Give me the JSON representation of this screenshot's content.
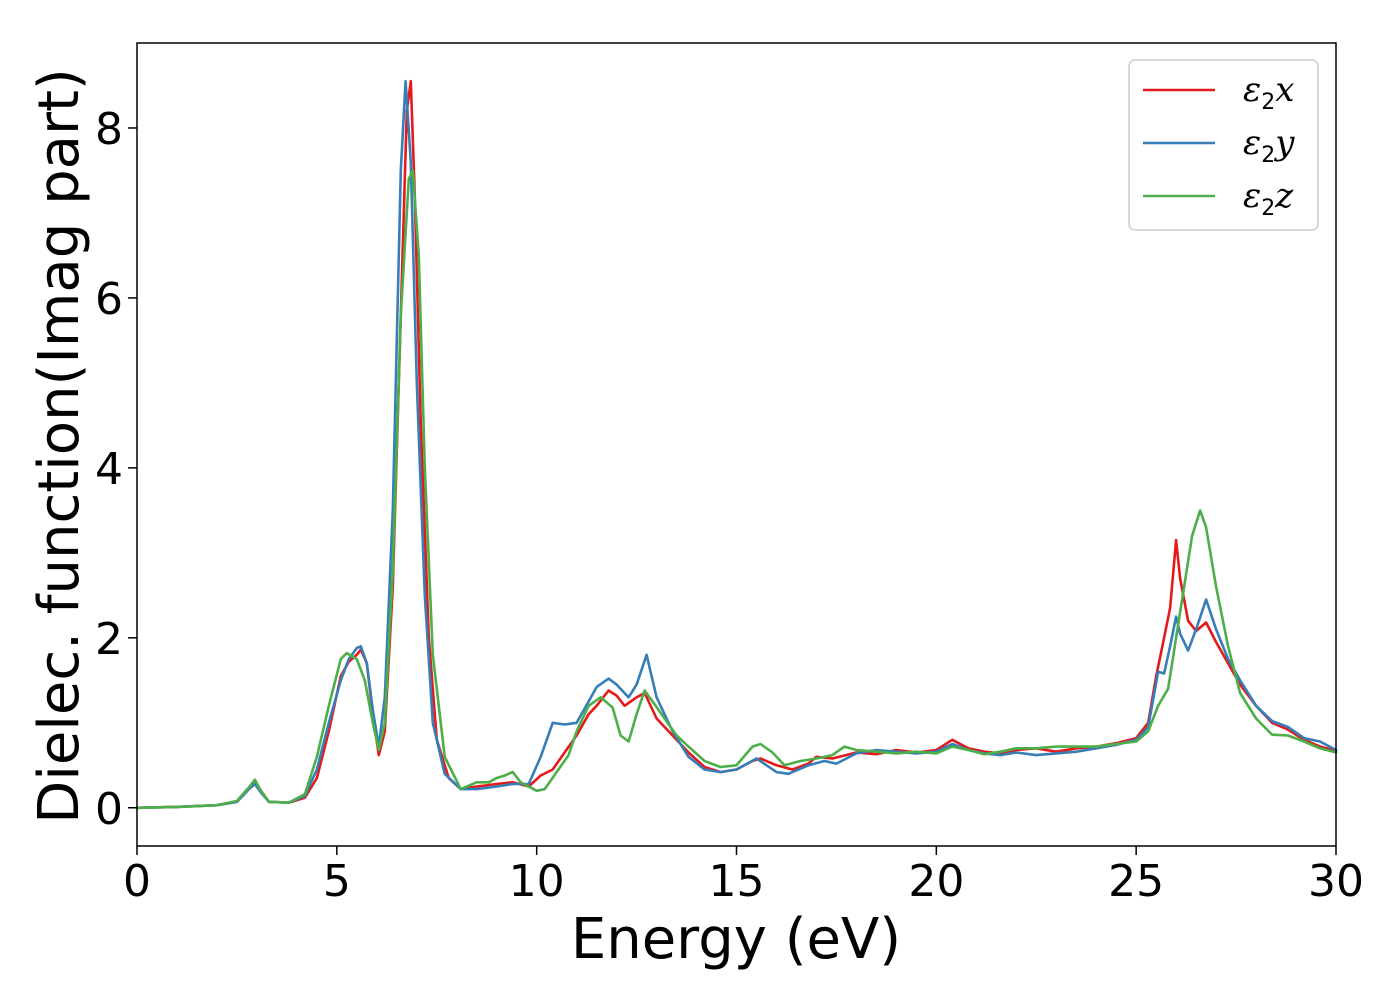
{
  "chart_data": {
    "type": "line",
    "xlabel": "Energy (eV)",
    "ylabel": "Dielec. function(Imag part)",
    "xlim": [
      0,
      30
    ],
    "ylim": [
      -0.45,
      9.0
    ],
    "xticks": [
      0,
      5,
      10,
      15,
      20,
      25,
      30
    ],
    "yticks": [
      0,
      2,
      4,
      6,
      8
    ],
    "grid": false,
    "legend_position": "top-right",
    "series": [
      {
        "name": "ε2x",
        "legend_base": "ε",
        "legend_sub": "2",
        "legend_suffix": "x",
        "color": "#e41a1c",
        "points": [
          [
            0,
            0
          ],
          [
            1,
            0.01
          ],
          [
            2,
            0.03
          ],
          [
            2.5,
            0.07
          ],
          [
            2.8,
            0.22
          ],
          [
            2.95,
            0.3
          ],
          [
            3.1,
            0.2
          ],
          [
            3.3,
            0.07
          ],
          [
            3.8,
            0.06
          ],
          [
            4.2,
            0.12
          ],
          [
            4.5,
            0.35
          ],
          [
            4.8,
            0.9
          ],
          [
            5.1,
            1.55
          ],
          [
            5.3,
            1.72
          ],
          [
            5.5,
            1.8
          ],
          [
            5.6,
            1.86
          ],
          [
            5.75,
            1.7
          ],
          [
            5.9,
            1.1
          ],
          [
            6.05,
            0.62
          ],
          [
            6.2,
            0.9
          ],
          [
            6.4,
            2.6
          ],
          [
            6.6,
            5.8
          ],
          [
            6.75,
            8.2
          ],
          [
            6.85,
            8.55
          ],
          [
            6.95,
            7.2
          ],
          [
            7.1,
            4.5
          ],
          [
            7.3,
            2.0
          ],
          [
            7.5,
            0.8
          ],
          [
            7.8,
            0.35
          ],
          [
            8.1,
            0.22
          ],
          [
            8.5,
            0.25
          ],
          [
            9.0,
            0.28
          ],
          [
            9.4,
            0.3
          ],
          [
            9.8,
            0.25
          ],
          [
            10.1,
            0.38
          ],
          [
            10.4,
            0.45
          ],
          [
            10.7,
            0.65
          ],
          [
            11.0,
            0.85
          ],
          [
            11.3,
            1.1
          ],
          [
            11.5,
            1.2
          ],
          [
            11.8,
            1.38
          ],
          [
            12.0,
            1.32
          ],
          [
            12.2,
            1.2
          ],
          [
            12.5,
            1.3
          ],
          [
            12.7,
            1.35
          ],
          [
            13.0,
            1.05
          ],
          [
            13.4,
            0.85
          ],
          [
            13.8,
            0.65
          ],
          [
            14.2,
            0.48
          ],
          [
            14.6,
            0.42
          ],
          [
            15.0,
            0.45
          ],
          [
            15.4,
            0.55
          ],
          [
            15.6,
            0.58
          ],
          [
            16.0,
            0.5
          ],
          [
            16.4,
            0.45
          ],
          [
            16.8,
            0.52
          ],
          [
            17.0,
            0.6
          ],
          [
            17.4,
            0.58
          ],
          [
            18.0,
            0.65
          ],
          [
            18.5,
            0.63
          ],
          [
            19.0,
            0.68
          ],
          [
            19.5,
            0.65
          ],
          [
            20.0,
            0.68
          ],
          [
            20.4,
            0.8
          ],
          [
            20.8,
            0.7
          ],
          [
            21.2,
            0.66
          ],
          [
            21.6,
            0.64
          ],
          [
            22.0,
            0.68
          ],
          [
            22.5,
            0.7
          ],
          [
            23.0,
            0.66
          ],
          [
            23.5,
            0.7
          ],
          [
            24.0,
            0.72
          ],
          [
            24.5,
            0.76
          ],
          [
            25.0,
            0.82
          ],
          [
            25.3,
            1.0
          ],
          [
            25.5,
            1.55
          ],
          [
            25.7,
            2.0
          ],
          [
            25.85,
            2.35
          ],
          [
            26.0,
            3.15
          ],
          [
            26.1,
            2.7
          ],
          [
            26.3,
            2.2
          ],
          [
            26.5,
            2.08
          ],
          [
            26.75,
            2.18
          ],
          [
            27.0,
            1.95
          ],
          [
            27.3,
            1.7
          ],
          [
            27.6,
            1.45
          ],
          [
            28.0,
            1.2
          ],
          [
            28.4,
            1.0
          ],
          [
            28.8,
            0.92
          ],
          [
            29.2,
            0.8
          ],
          [
            29.6,
            0.72
          ],
          [
            30.0,
            0.67
          ]
        ]
      },
      {
        "name": "ε2y",
        "legend_base": "ε",
        "legend_sub": "2",
        "legend_suffix": "y",
        "color": "#377eb8",
        "points": [
          [
            0,
            0
          ],
          [
            1,
            0.01
          ],
          [
            2,
            0.03
          ],
          [
            2.5,
            0.07
          ],
          [
            2.8,
            0.22
          ],
          [
            2.95,
            0.28
          ],
          [
            3.1,
            0.18
          ],
          [
            3.3,
            0.07
          ],
          [
            3.8,
            0.06
          ],
          [
            4.2,
            0.14
          ],
          [
            4.5,
            0.45
          ],
          [
            4.8,
            1.0
          ],
          [
            5.1,
            1.5
          ],
          [
            5.3,
            1.75
          ],
          [
            5.5,
            1.88
          ],
          [
            5.6,
            1.9
          ],
          [
            5.75,
            1.7
          ],
          [
            5.9,
            1.15
          ],
          [
            6.05,
            0.72
          ],
          [
            6.2,
            1.3
          ],
          [
            6.4,
            3.5
          ],
          [
            6.6,
            7.5
          ],
          [
            6.72,
            8.55
          ],
          [
            6.85,
            7.6
          ],
          [
            7.0,
            5.0
          ],
          [
            7.2,
            2.5
          ],
          [
            7.4,
            1.0
          ],
          [
            7.7,
            0.4
          ],
          [
            8.1,
            0.22
          ],
          [
            8.5,
            0.22
          ],
          [
            9.0,
            0.25
          ],
          [
            9.4,
            0.28
          ],
          [
            9.8,
            0.28
          ],
          [
            10.1,
            0.6
          ],
          [
            10.4,
            1.0
          ],
          [
            10.7,
            0.98
          ],
          [
            11.0,
            1.0
          ],
          [
            11.3,
            1.25
          ],
          [
            11.5,
            1.42
          ],
          [
            11.8,
            1.52
          ],
          [
            12.0,
            1.45
          ],
          [
            12.3,
            1.3
          ],
          [
            12.5,
            1.45
          ],
          [
            12.75,
            1.8
          ],
          [
            13.0,
            1.3
          ],
          [
            13.4,
            0.9
          ],
          [
            13.8,
            0.6
          ],
          [
            14.2,
            0.45
          ],
          [
            14.6,
            0.42
          ],
          [
            15.0,
            0.45
          ],
          [
            15.5,
            0.58
          ],
          [
            16.0,
            0.42
          ],
          [
            16.3,
            0.4
          ],
          [
            16.8,
            0.5
          ],
          [
            17.2,
            0.55
          ],
          [
            17.5,
            0.52
          ],
          [
            18.0,
            0.64
          ],
          [
            18.5,
            0.68
          ],
          [
            19.0,
            0.66
          ],
          [
            19.5,
            0.64
          ],
          [
            20.0,
            0.66
          ],
          [
            20.4,
            0.75
          ],
          [
            20.8,
            0.68
          ],
          [
            21.2,
            0.64
          ],
          [
            21.6,
            0.62
          ],
          [
            22.0,
            0.65
          ],
          [
            22.5,
            0.62
          ],
          [
            23.0,
            0.64
          ],
          [
            23.5,
            0.66
          ],
          [
            24.0,
            0.7
          ],
          [
            24.5,
            0.74
          ],
          [
            25.0,
            0.8
          ],
          [
            25.3,
            0.95
          ],
          [
            25.55,
            1.6
          ],
          [
            25.7,
            1.58
          ],
          [
            25.85,
            1.9
          ],
          [
            26.0,
            2.25
          ],
          [
            26.1,
            2.05
          ],
          [
            26.3,
            1.85
          ],
          [
            26.5,
            2.1
          ],
          [
            26.75,
            2.45
          ],
          [
            27.0,
            2.1
          ],
          [
            27.3,
            1.75
          ],
          [
            27.6,
            1.5
          ],
          [
            28.0,
            1.2
          ],
          [
            28.4,
            1.02
          ],
          [
            28.8,
            0.95
          ],
          [
            29.2,
            0.82
          ],
          [
            29.6,
            0.78
          ],
          [
            30.0,
            0.68
          ]
        ]
      },
      {
        "name": "ε2z",
        "legend_base": "ε",
        "legend_sub": "2",
        "legend_suffix": "z",
        "color": "#4daf4a",
        "points": [
          [
            0,
            0
          ],
          [
            1,
            0.01
          ],
          [
            2,
            0.03
          ],
          [
            2.5,
            0.08
          ],
          [
            2.8,
            0.24
          ],
          [
            2.95,
            0.33
          ],
          [
            3.1,
            0.2
          ],
          [
            3.3,
            0.07
          ],
          [
            3.8,
            0.06
          ],
          [
            4.2,
            0.16
          ],
          [
            4.5,
            0.6
          ],
          [
            4.8,
            1.2
          ],
          [
            5.1,
            1.75
          ],
          [
            5.25,
            1.82
          ],
          [
            5.5,
            1.75
          ],
          [
            5.7,
            1.5
          ],
          [
            5.9,
            1.0
          ],
          [
            6.05,
            0.68
          ],
          [
            6.2,
            1.0
          ],
          [
            6.4,
            2.8
          ],
          [
            6.6,
            5.8
          ],
          [
            6.8,
            7.4
          ],
          [
            6.9,
            7.5
          ],
          [
            7.05,
            6.5
          ],
          [
            7.2,
            4.0
          ],
          [
            7.4,
            1.8
          ],
          [
            7.7,
            0.6
          ],
          [
            8.1,
            0.22
          ],
          [
            8.5,
            0.3
          ],
          [
            8.8,
            0.3
          ],
          [
            9.0,
            0.35
          ],
          [
            9.2,
            0.38
          ],
          [
            9.4,
            0.42
          ],
          [
            9.6,
            0.3
          ],
          [
            10.0,
            0.2
          ],
          [
            10.2,
            0.22
          ],
          [
            10.5,
            0.42
          ],
          [
            10.8,
            0.62
          ],
          [
            11.0,
            0.9
          ],
          [
            11.3,
            1.2
          ],
          [
            11.6,
            1.3
          ],
          [
            11.9,
            1.18
          ],
          [
            12.1,
            0.85
          ],
          [
            12.3,
            0.78
          ],
          [
            12.5,
            1.1
          ],
          [
            12.7,
            1.38
          ],
          [
            12.9,
            1.25
          ],
          [
            13.2,
            1.05
          ],
          [
            13.5,
            0.85
          ],
          [
            13.8,
            0.72
          ],
          [
            14.2,
            0.55
          ],
          [
            14.6,
            0.48
          ],
          [
            15.0,
            0.5
          ],
          [
            15.4,
            0.72
          ],
          [
            15.6,
            0.75
          ],
          [
            15.9,
            0.65
          ],
          [
            16.2,
            0.5
          ],
          [
            16.6,
            0.55
          ],
          [
            17.0,
            0.58
          ],
          [
            17.4,
            0.62
          ],
          [
            17.7,
            0.72
          ],
          [
            18.0,
            0.68
          ],
          [
            18.5,
            0.66
          ],
          [
            19.0,
            0.64
          ],
          [
            19.5,
            0.66
          ],
          [
            20.0,
            0.64
          ],
          [
            20.4,
            0.72
          ],
          [
            20.8,
            0.68
          ],
          [
            21.2,
            0.63
          ],
          [
            21.6,
            0.66
          ],
          [
            22.0,
            0.7
          ],
          [
            22.5,
            0.7
          ],
          [
            23.0,
            0.72
          ],
          [
            23.5,
            0.72
          ],
          [
            24.0,
            0.72
          ],
          [
            24.5,
            0.75
          ],
          [
            25.0,
            0.78
          ],
          [
            25.3,
            0.9
          ],
          [
            25.55,
            1.2
          ],
          [
            25.8,
            1.4
          ],
          [
            26.0,
            2.0
          ],
          [
            26.2,
            2.6
          ],
          [
            26.4,
            3.2
          ],
          [
            26.6,
            3.5
          ],
          [
            26.75,
            3.3
          ],
          [
            27.0,
            2.6
          ],
          [
            27.3,
            1.9
          ],
          [
            27.6,
            1.35
          ],
          [
            28.0,
            1.05
          ],
          [
            28.4,
            0.86
          ],
          [
            28.8,
            0.85
          ],
          [
            29.2,
            0.78
          ],
          [
            29.6,
            0.7
          ],
          [
            30.0,
            0.65
          ]
        ]
      }
    ]
  }
}
